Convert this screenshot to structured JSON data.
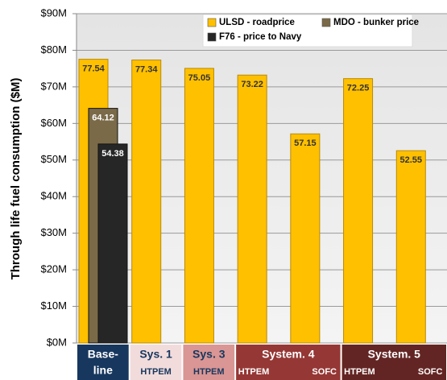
{
  "chart_data": {
    "type": "bar",
    "y_label": "Through life fuel consumption ($M)",
    "ylim": [
      0,
      90
    ],
    "yticks": [
      {
        "value": 0,
        "label": "$0M"
      },
      {
        "value": 10,
        "label": "$10M"
      },
      {
        "value": 20,
        "label": "$20M"
      },
      {
        "value": 30,
        "label": "$30M"
      },
      {
        "value": 40,
        "label": "$40M"
      },
      {
        "value": 50,
        "label": "$50M"
      },
      {
        "value": 60,
        "label": "$60M"
      },
      {
        "value": 70,
        "label": "$70M"
      },
      {
        "value": 80,
        "label": "$80M"
      },
      {
        "value": 90,
        "label": "$90M"
      }
    ],
    "grid": true,
    "legend": "top-right",
    "categories": [
      null,
      "HTPEM",
      "HTPEM",
      "HTPEM",
      "SOFC",
      "HTPEM",
      "SOFC"
    ],
    "groups": [
      {
        "label": [
          "Base-",
          "line"
        ],
        "color": "#17375e",
        "text_color": "#ffffff",
        "span": 1
      },
      {
        "label": [
          "Sys. 1"
        ],
        "color": "#f2dcdb",
        "text_color": "#17375e",
        "span": 1
      },
      {
        "label": [
          "Sys. 3"
        ],
        "color": "#d99694",
        "text_color": "#17375e",
        "span": 1
      },
      {
        "label": [
          "System. 4"
        ],
        "color": "#953735",
        "text_color": "#ffffff",
        "span": 2
      },
      {
        "label": [
          "System. 5"
        ],
        "color": "#632523",
        "text_color": "#ffffff",
        "span": 2
      }
    ],
    "series": [
      {
        "name": "ULSD - roadprice",
        "color": "#ffc000",
        "label_color": "#333333",
        "values": [
          77.54,
          77.34,
          75.05,
          73.22,
          57.15,
          72.25,
          52.55
        ]
      },
      {
        "name": "MDO - bunker price",
        "color": "#7a6a48",
        "label_color": "#ffffff",
        "values": [
          64.12,
          null,
          null,
          null,
          null,
          null,
          null
        ]
      },
      {
        "name": "F76 - price to Navy",
        "color": "#262626",
        "label_color": "#ffffff",
        "values": [
          54.38,
          null,
          null,
          null,
          null,
          null,
          null
        ]
      }
    ]
  }
}
